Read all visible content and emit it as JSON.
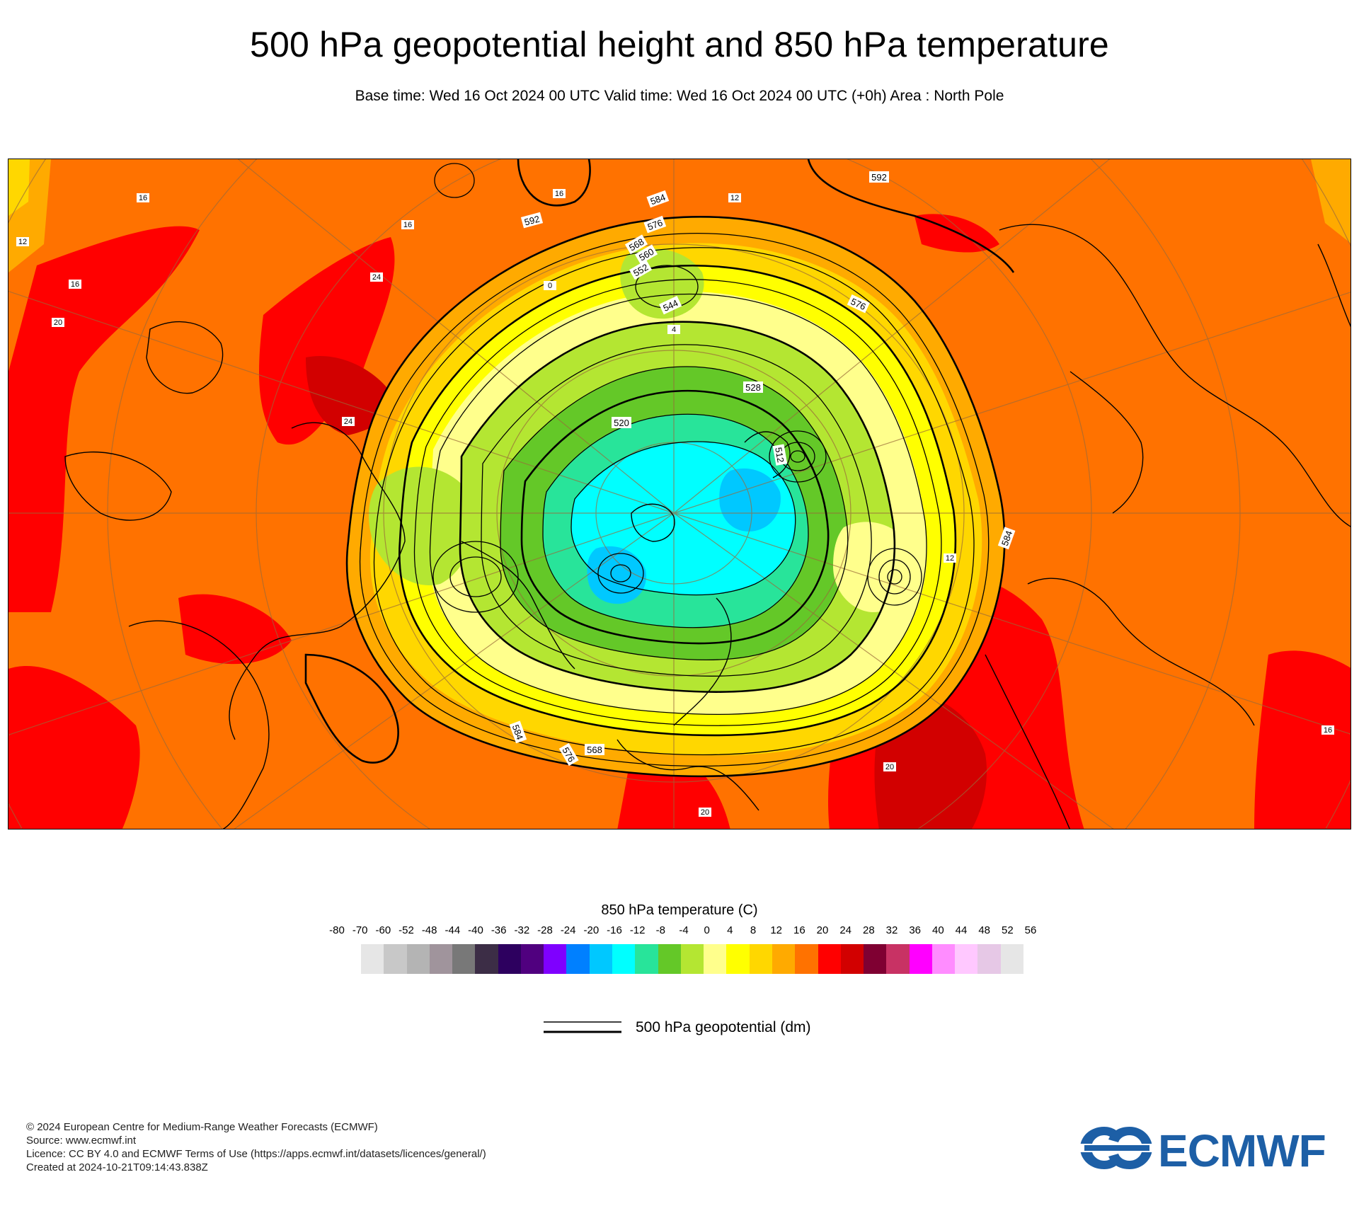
{
  "header": {
    "title": "500 hPa geopotential height and 850 hPa temperature",
    "subtitle": "Base time: Wed 16 Oct 2024 00 UTC Valid time: Wed 16 Oct 2024 00 UTC (+0h) Area : North Pole"
  },
  "map": {
    "projection": "polar stereographic, North Pole",
    "contour_labels": [
      "592",
      "592",
      "584",
      "576",
      "576",
      "568",
      "560",
      "552",
      "544",
      "528",
      "520",
      "512",
      "584",
      "576",
      "568",
      "584"
    ],
    "temperature_labels": [
      "16",
      "16",
      "16",
      "20",
      "24",
      "12",
      "12",
      "24",
      "16",
      "20",
      "16",
      "20",
      "12",
      "4",
      "0"
    ]
  },
  "legend": {
    "title": "850 hPa temperature (C)",
    "ticks": [
      "-80",
      "-70",
      "-60",
      "-52",
      "-48",
      "-44",
      "-40",
      "-36",
      "-32",
      "-28",
      "-24",
      "-20",
      "-16",
      "-12",
      "-8",
      "-4",
      "0",
      "4",
      "8",
      "12",
      "16",
      "20",
      "24",
      "28",
      "32",
      "36",
      "40",
      "44",
      "48",
      "52",
      "56"
    ],
    "colors": [
      "#e6e6e6",
      "#c8c8c8",
      "#b4b4b4",
      "#a0949c",
      "#787878",
      "#3c2d46",
      "#2d005f",
      "#50007f",
      "#7f00ff",
      "#0080ff",
      "#00c8ff",
      "#00ffff",
      "#28e49a",
      "#64c828",
      "#b4e632",
      "#ffff8c",
      "#ffff00",
      "#ffd700",
      "#ffaa00",
      "#ff7200",
      "#ff0000",
      "#d20000",
      "#7f0032",
      "#c83264",
      "#ff00ff",
      "#ff8cff",
      "#ffc8ff",
      "#e6c8e6",
      "#e6e6e6"
    ],
    "line_label": "500 hPa geopotential (dm)"
  },
  "credits": {
    "line1": "© 2024 European Centre for Medium-Range Weather Forecasts (ECMWF)",
    "line2": "Source: www.ecmwf.int",
    "line3": "Licence: CC BY 4.0 and ECMWF Terms of Use (https://apps.ecmwf.int/datasets/licences/general/)",
    "line4": "Created at 2024-10-21T09:14:43.838Z"
  },
  "logo": {
    "text": "ECMWF",
    "color": "#1d5fa6"
  }
}
